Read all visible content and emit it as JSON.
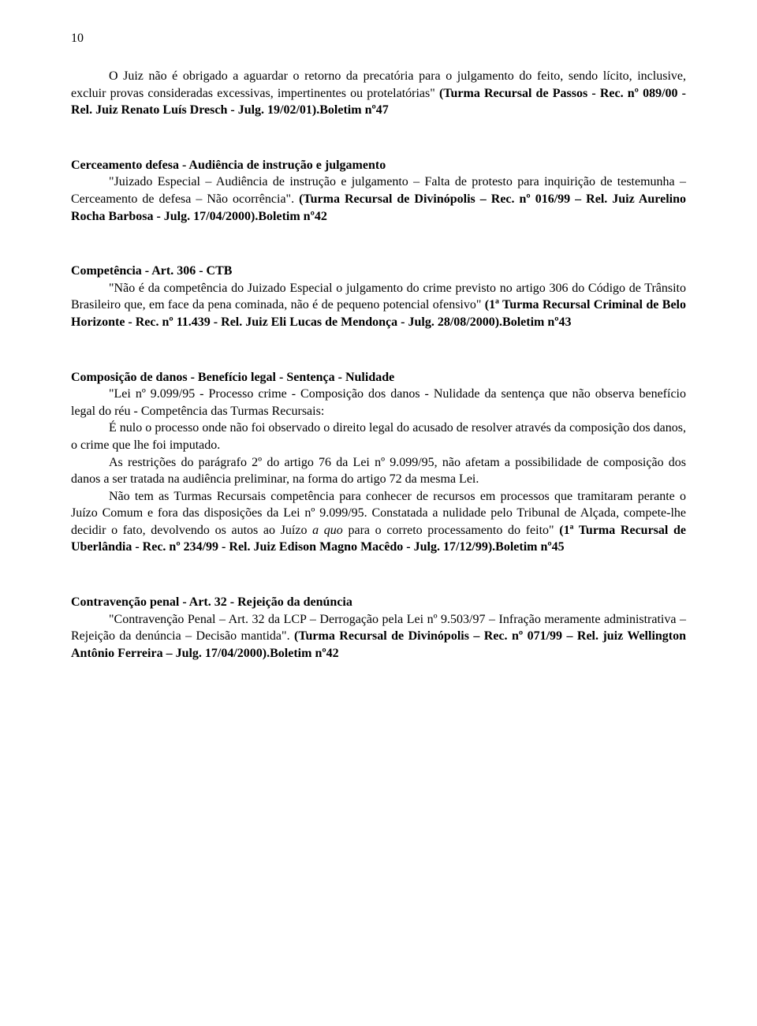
{
  "page_number": "10",
  "entries": [
    {
      "heading": "",
      "paragraphs": [
        {
          "indent": true,
          "segments": [
            {
              "text": "O Juiz não é obrigado a aguardar o retorno da precatória para o julgamento do feito, sendo lícito, inclusive, excluir provas consideradas excessivas, impertinentes ou protelatórias\" ",
              "bold": false
            },
            {
              "text": "(Turma Recursal de Passos - Rec. nº 089/00 - Rel. Juiz Renato Luís Dresch - Julg. 19/02/01).Boletim nº47",
              "bold": true
            }
          ]
        }
      ]
    },
    {
      "heading": "Cerceamento defesa - Audiência de instrução e julgamento",
      "paragraphs": [
        {
          "indent": true,
          "segments": [
            {
              "text": "\"Juizado Especial – Audiência de instrução e julgamento – Falta de protesto para inquirição de testemunha – Cerceamento de defesa – Não ocorrência\". ",
              "bold": false
            },
            {
              "text": "(Turma Recursal de Divinópolis – Rec. nº 016/99 – Rel. Juiz Aurelino Rocha Barbosa - Julg. 17/04/2000).Boletim nº42",
              "bold": true
            }
          ]
        }
      ]
    },
    {
      "heading": "Competência - Art. 306 - CTB",
      "paragraphs": [
        {
          "indent": true,
          "segments": [
            {
              "text": "\"Não é da competência do Juizado Especial o julgamento do crime previsto no artigo 306 do Código de Trânsito Brasileiro que, em face da pena cominada, não é de pequeno potencial ofensivo\" ",
              "bold": false
            },
            {
              "text": "(1ª Turma Recursal Criminal de Belo Horizonte - Rec. nº 11.439 - Rel. Juiz Eli Lucas de Mendonça - Julg. 28/08/2000).Boletim nº43",
              "bold": true
            }
          ]
        }
      ]
    },
    {
      "heading": "Composição de danos - Benefício legal - Sentença - Nulidade",
      "paragraphs": [
        {
          "indent": true,
          "segments": [
            {
              "text": "\"Lei nº 9.099/95 - Processo crime - Composição dos danos - Nulidade da sentença que não observa benefício legal do réu - Competência das Turmas Recursais:",
              "bold": false
            }
          ]
        },
        {
          "indent": true,
          "segments": [
            {
              "text": "É nulo o processo onde não foi observado o direito legal do acusado de resolver através da composição dos danos, o crime que lhe foi imputado.",
              "bold": false
            }
          ]
        },
        {
          "indent": true,
          "segments": [
            {
              "text": "As restrições do parágrafo 2º do artigo 76 da Lei nº 9.099/95, não afetam a possibilidade de composição dos danos a ser tratada na audiência preliminar, na forma do artigo 72 da mesma Lei.",
              "bold": false
            }
          ]
        },
        {
          "indent": true,
          "segments": [
            {
              "text": "Não tem as Turmas Recursais competência para conhecer de recursos em processos que tramitaram perante o Juízo Comum e fora das disposições da Lei nº 9.099/95. Constatada a nulidade pelo Tribunal de Alçada, compete-lhe decidir o fato, devolvendo os autos ao Juízo ",
              "bold": false
            },
            {
              "text": "a quo",
              "bold": false,
              "italic": true
            },
            {
              "text": " para o correto processamento do feito\" ",
              "bold": false
            },
            {
              "text": "(1ª Turma Recursal de Uberlândia - Rec. nº 234/99 - Rel. Juiz Edison Magno Macêdo - Julg. 17/12/99).Boletim nº45",
              "bold": true
            }
          ]
        }
      ]
    },
    {
      "heading": "Contravenção penal - Art. 32 - Rejeição da denúncia",
      "paragraphs": [
        {
          "indent": true,
          "segments": [
            {
              "text": "\"Contravenção Penal – Art. 32 da LCP – Derrogação pela Lei nº 9.503/97 – Infração meramente administrativa – Rejeição da denúncia – Decisão mantida\". ",
              "bold": false
            },
            {
              "text": "(Turma Recursal de Divinópolis – Rec. nº 071/99 – Rel. juiz Wellington Antônio Ferreira – Julg. 17/04/2000).Boletim nº42",
              "bold": true
            }
          ]
        }
      ]
    }
  ]
}
